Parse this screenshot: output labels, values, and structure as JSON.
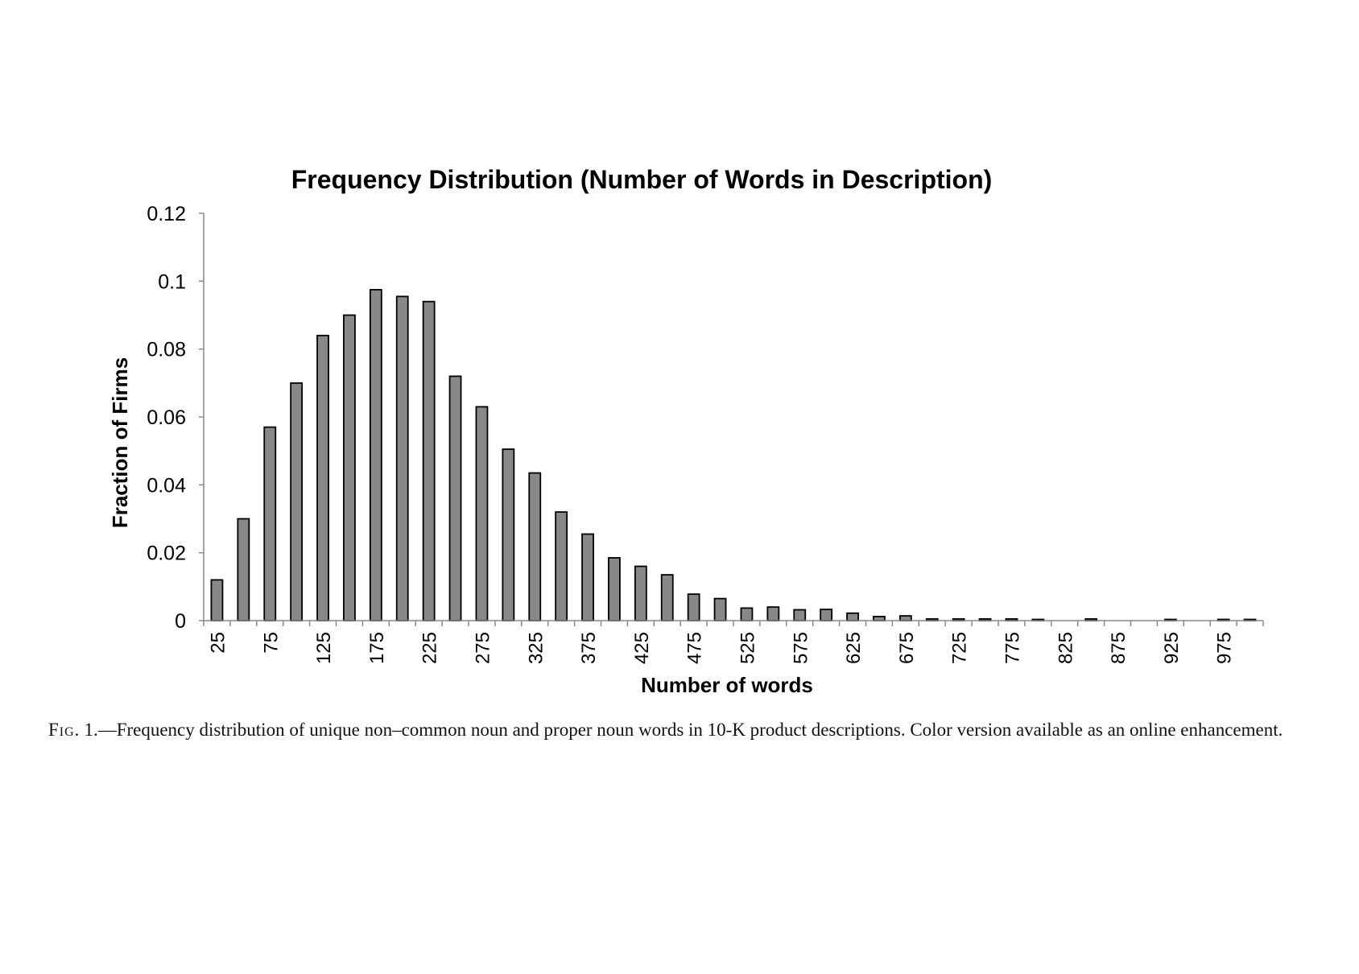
{
  "chart_data": {
    "type": "bar",
    "title": "Frequency Distribution (Number of Words in Description)",
    "xlabel": "Number of words",
    "ylabel": "Fraction of Firms",
    "ylim": [
      0,
      0.12
    ],
    "yticks": [
      "0",
      "0.02",
      "0.04",
      "0.06",
      "0.08",
      "0.1",
      "0.12"
    ],
    "categories": [
      25,
      50,
      75,
      100,
      125,
      150,
      175,
      200,
      225,
      250,
      275,
      300,
      325,
      350,
      375,
      400,
      425,
      450,
      475,
      500,
      525,
      550,
      575,
      600,
      625,
      650,
      675,
      700,
      725,
      750,
      775,
      800,
      825,
      850,
      875,
      900,
      925,
      950,
      975,
      1000
    ],
    "xtick_labels": [
      "25",
      "75",
      "125",
      "175",
      "225",
      "275",
      "325",
      "375",
      "425",
      "475",
      "525",
      "575",
      "625",
      "675",
      "725",
      "775",
      "825",
      "875",
      "925",
      "975"
    ],
    "values": [
      0.012,
      0.03,
      0.057,
      0.07,
      0.084,
      0.09,
      0.0975,
      0.0955,
      0.094,
      0.072,
      0.063,
      0.0505,
      0.0435,
      0.032,
      0.0255,
      0.0185,
      0.016,
      0.0135,
      0.0078,
      0.0065,
      0.0037,
      0.004,
      0.0032,
      0.0033,
      0.0022,
      0.0012,
      0.0014,
      0.0005,
      0.0005,
      0.0005,
      0.0005,
      0.0003,
      0.0,
      0.0005,
      0.0,
      0.0,
      0.0003,
      0.0,
      0.0003,
      0.0003
    ],
    "bar_color": "#888888",
    "grid": false,
    "legend": "none"
  },
  "caption": {
    "lead": "Fig.",
    "number": "1.—",
    "text": "Frequency distribution of unique non–common noun and proper noun words in 10-K product descriptions. Color version available as an online enhancement."
  }
}
